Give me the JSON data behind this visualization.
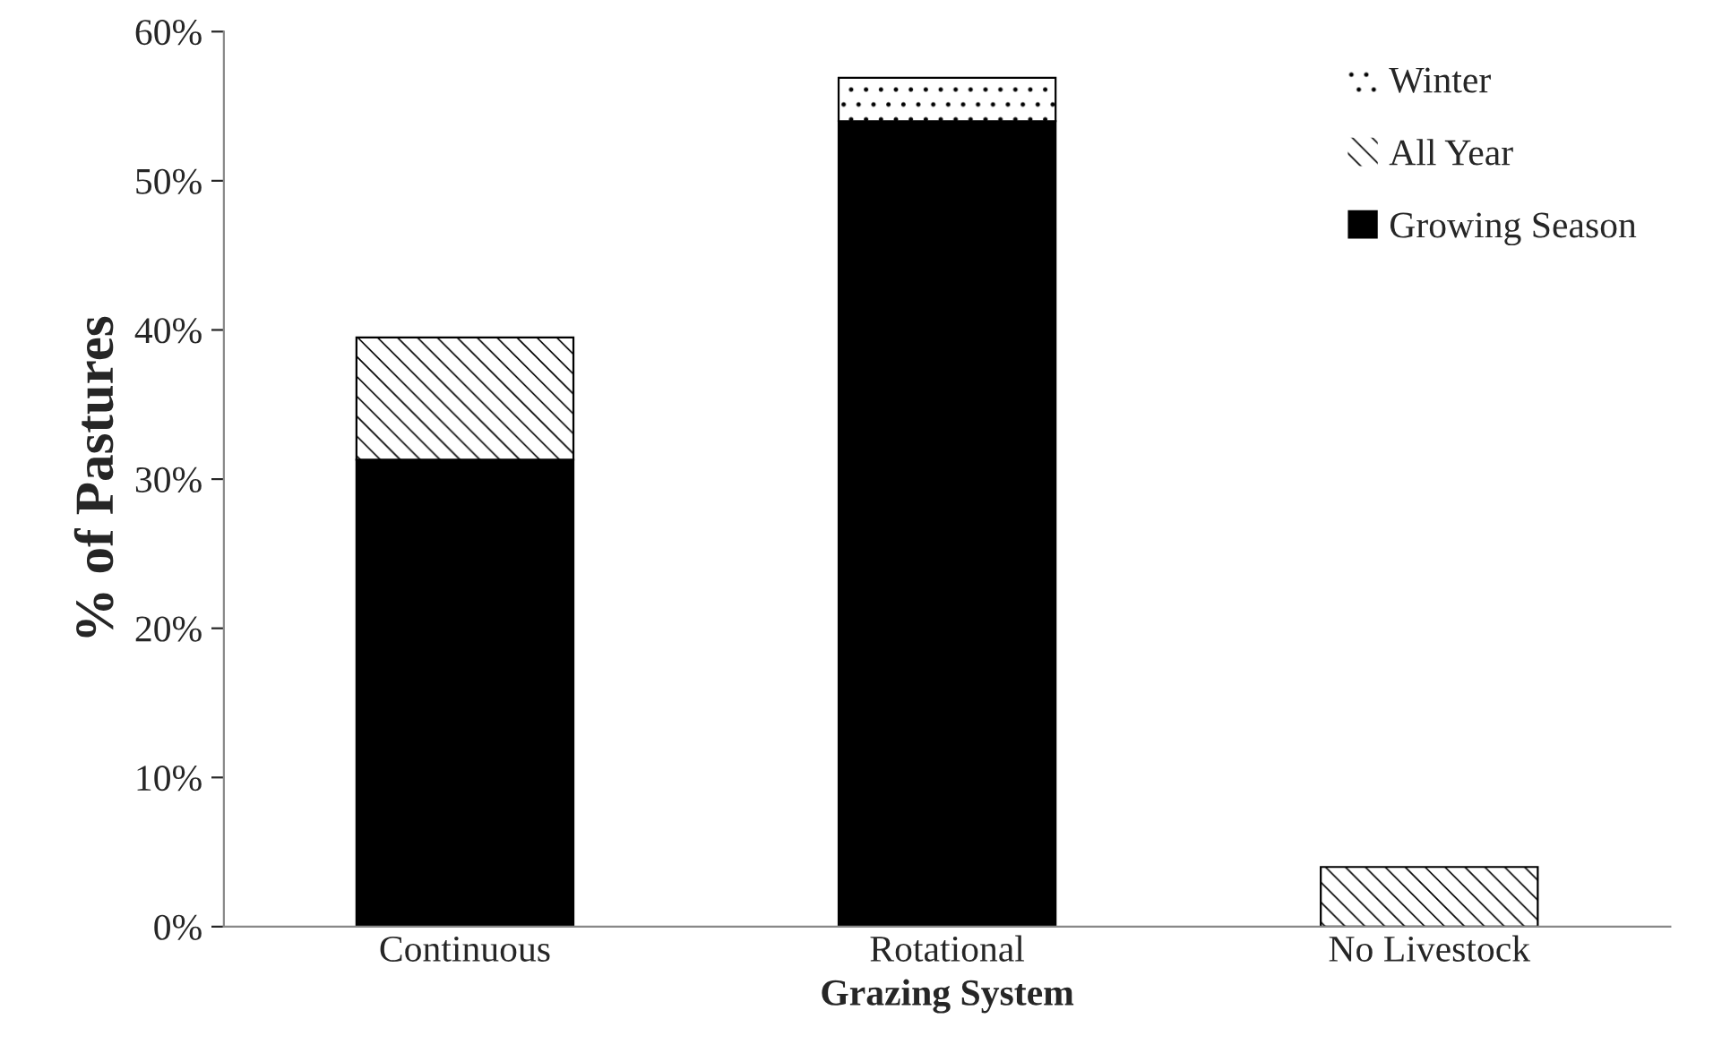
{
  "chart_data": {
    "type": "bar",
    "stacked": true,
    "xlabel": "Grazing System",
    "ylabel": "% of Pastures",
    "categories": [
      "Continuous",
      "Rotational",
      "No Livestock"
    ],
    "series": [
      {
        "name": "Growing Season",
        "color": "#000000",
        "values": [
          31.3,
          54.0,
          null
        ]
      },
      {
        "name": "All Year",
        "color": "#ffffff",
        "values": [
          8.2,
          null,
          4.0
        ]
      },
      {
        "name": "Winter",
        "color": "#ffffff",
        "values": [
          null,
          2.9,
          null
        ]
      }
    ],
    "ylim": [
      0,
      60
    ],
    "yticks": [
      {
        "value": 0,
        "label": "0%"
      },
      {
        "value": 10,
        "label": "10%"
      },
      {
        "value": 20,
        "label": "20%"
      },
      {
        "value": 30,
        "label": "30%"
      },
      {
        "value": 40,
        "label": "40%"
      },
      {
        "value": 50,
        "label": "50%"
      },
      {
        "value": 60,
        "label": "60%"
      }
    ],
    "grid": false,
    "legend": "top right"
  }
}
